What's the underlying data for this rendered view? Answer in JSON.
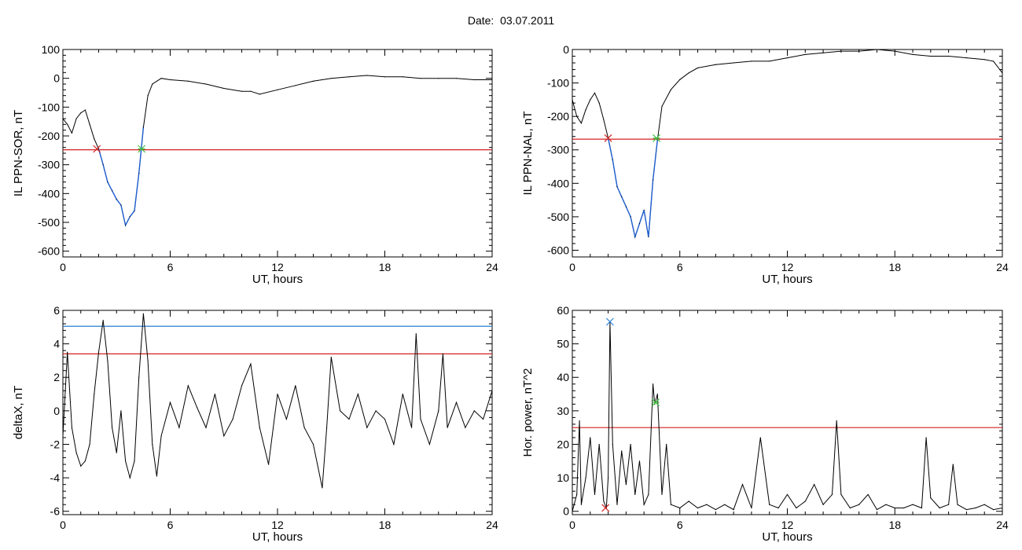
{
  "header": {
    "date_label": "Date:",
    "date_value": "03.07.2011"
  },
  "colors": {
    "trace": "#000000",
    "highlight": "#1f5fcf",
    "threshold_red": "#d42020",
    "threshold_blue": "#2a7fd4",
    "marker_green": "#3fbf3f"
  },
  "chart_data": [
    {
      "type": "line",
      "xlabel": "UT, hours",
      "ylabel": "IL PPN-SOR, nT",
      "xlim": [
        0,
        24
      ],
      "ylim": [
        -620,
        100
      ],
      "xticks": [
        0,
        6,
        12,
        18,
        24
      ],
      "yticks": [
        100,
        0,
        -100,
        -200,
        -300,
        -400,
        -500,
        -600
      ],
      "series": [
        {
          "x": [
            0,
            0.25,
            0.5,
            0.75,
            1,
            1.25,
            1.5,
            1.75,
            2,
            2.25,
            2.5,
            2.75,
            3,
            3.25,
            3.5,
            3.75,
            4,
            4.25,
            4.5,
            4.75,
            5,
            5.5,
            6,
            7,
            8,
            9,
            10,
            10.5,
            11,
            12,
            13,
            14,
            15,
            16,
            17,
            18,
            19,
            20,
            21,
            22,
            23,
            24
          ],
          "y": [
            -140,
            -160,
            -190,
            -140,
            -120,
            -110,
            -160,
            -210,
            -245,
            -300,
            -360,
            -390,
            -420,
            -440,
            -510,
            -480,
            -460,
            -330,
            -170,
            -60,
            -20,
            0,
            -5,
            -10,
            -20,
            -35,
            -45,
            -45,
            -55,
            -40,
            -25,
            -10,
            0,
            5,
            10,
            5,
            5,
            0,
            0,
            0,
            -5,
            -5
          ]
        }
      ],
      "highlight": {
        "x_start": 1.9,
        "x_end": 4.4
      },
      "threshold_red": -248,
      "markers": [
        {
          "x": 1.9,
          "y": -245,
          "color": "red"
        },
        {
          "x": 4.4,
          "y": -245,
          "color": "green"
        }
      ]
    },
    {
      "type": "line",
      "xlabel": "UT, hours",
      "ylabel": "IL PPN-NAL, nT",
      "xlim": [
        0,
        24
      ],
      "ylim": [
        -620,
        0
      ],
      "xticks": [
        0,
        6,
        12,
        18,
        24
      ],
      "yticks": [
        0,
        -100,
        -200,
        -300,
        -400,
        -500,
        -600
      ],
      "series": [
        {
          "x": [
            0,
            0.25,
            0.5,
            0.75,
            1,
            1.25,
            1.5,
            1.75,
            2,
            2.25,
            2.5,
            2.75,
            3,
            3.25,
            3.5,
            3.75,
            4,
            4.25,
            4.5,
            4.75,
            5,
            5.5,
            6,
            6.5,
            7,
            8,
            9,
            10,
            11,
            12,
            13,
            14,
            15,
            16,
            17,
            18,
            19,
            20,
            21,
            22,
            23,
            23.5,
            24
          ],
          "y": [
            -150,
            -200,
            -220,
            -180,
            -150,
            -130,
            -160,
            -210,
            -265,
            -330,
            -410,
            -440,
            -470,
            -500,
            -560,
            -520,
            -480,
            -560,
            -390,
            -270,
            -170,
            -120,
            -90,
            -70,
            -55,
            -45,
            -40,
            -35,
            -35,
            -25,
            -15,
            -10,
            -5,
            -5,
            0,
            -5,
            -15,
            -20,
            -20,
            -25,
            -30,
            -35,
            -70
          ]
        }
      ],
      "highlight": {
        "x_start": 2.0,
        "x_end": 4.7
      },
      "threshold_red": -268,
      "markers": [
        {
          "x": 2.0,
          "y": -265,
          "color": "red"
        },
        {
          "x": 4.7,
          "y": -265,
          "color": "green"
        }
      ]
    },
    {
      "type": "line",
      "xlabel": "UT, hours",
      "ylabel": "deltaX, nT",
      "xlim": [
        0,
        24
      ],
      "ylim": [
        -6.2,
        6
      ],
      "xticks": [
        0,
        6,
        12,
        18,
        24
      ],
      "yticks": [
        6,
        4,
        2,
        0,
        -2,
        -4,
        -6
      ],
      "series": [
        {
          "x": [
            0,
            0.25,
            0.5,
            0.75,
            1,
            1.25,
            1.5,
            1.75,
            2,
            2.25,
            2.5,
            2.75,
            3,
            3.25,
            3.5,
            3.75,
            4,
            4.25,
            4.5,
            4.75,
            5,
            5.25,
            5.5,
            6,
            6.5,
            7,
            7.5,
            8,
            8.5,
            9,
            9.5,
            10,
            10.5,
            11,
            11.5,
            12,
            12.5,
            13,
            13.5,
            14,
            14.5,
            14.75,
            15,
            15.5,
            16,
            16.5,
            17,
            17.5,
            18,
            18.5,
            19,
            19.5,
            19.75,
            20,
            20.5,
            21,
            21.25,
            21.5,
            22,
            22.5,
            23,
            23.5,
            24
          ],
          "y": [
            -1.5,
            3.5,
            -1,
            -2.5,
            -3.3,
            -3,
            -2,
            1,
            3.5,
            5.4,
            3,
            -1,
            -2.5,
            0,
            -3,
            -4,
            -3,
            2,
            5.8,
            3,
            -2,
            -3.9,
            -1.5,
            0.5,
            -1,
            1.5,
            0.2,
            -1,
            1,
            -1.5,
            -0.5,
            1.5,
            2.8,
            -1,
            -3.2,
            1,
            -0.5,
            1.5,
            -1,
            -2,
            -4.6,
            -1,
            3.2,
            0,
            -0.5,
            1,
            -1,
            0,
            -0.5,
            -2,
            1,
            -1,
            4.6,
            -0.5,
            -2,
            0,
            3.4,
            -1,
            0.5,
            -1,
            0,
            -0.5,
            1.2
          ]
        }
      ],
      "threshold_red": 3.4,
      "threshold_blue": 5.05
    },
    {
      "type": "line",
      "xlabel": "UT, hours",
      "ylabel": "Hor. power, nT^2",
      "xlim": [
        0,
        24
      ],
      "ylim": [
        -1,
        60
      ],
      "xticks": [
        0,
        6,
        12,
        18,
        24
      ],
      "yticks": [
        60,
        50,
        40,
        30,
        20,
        10,
        0
      ],
      "series": [
        {
          "x": [
            0,
            0.25,
            0.4,
            0.5,
            0.75,
            1,
            1.25,
            1.5,
            1.75,
            1.9,
            2,
            2.1,
            2.25,
            2.5,
            2.75,
            3,
            3.25,
            3.5,
            3.75,
            4,
            4.25,
            4.5,
            4.6,
            4.75,
            5,
            5.25,
            5.5,
            6,
            6.5,
            7,
            7.5,
            8,
            8.5,
            9,
            9.5,
            10,
            10.5,
            11,
            11.5,
            12,
            12.5,
            13,
            13.5,
            14,
            14.5,
            14.75,
            15,
            15.5,
            16,
            16.5,
            17,
            17.5,
            18,
            18.5,
            19,
            19.5,
            19.75,
            20,
            20.5,
            21,
            21.25,
            21.5,
            22,
            22.5,
            23,
            23.5,
            24
          ],
          "y": [
            0,
            5,
            27,
            2,
            10,
            22,
            5,
            20,
            3,
            1,
            10,
            56.6,
            20,
            2,
            18,
            8,
            20,
            5,
            15,
            2,
            5,
            38,
            32,
            35,
            5,
            20,
            2,
            1,
            3,
            1,
            2,
            0.5,
            2,
            0.5,
            8,
            1,
            22,
            2,
            1,
            5,
            1,
            3,
            8,
            2,
            5,
            27,
            5,
            1,
            2,
            5,
            0.5,
            2,
            1,
            1,
            2,
            1,
            22,
            4,
            1,
            2,
            14,
            2,
            0.5,
            1,
            2,
            0.5,
            1
          ]
        }
      ],
      "threshold_red": 25,
      "markers": [
        {
          "x": 2.1,
          "y": 56.6,
          "color": "blue"
        },
        {
          "x": 4.65,
          "y": 32.5,
          "color": "green"
        },
        {
          "x": 1.85,
          "y": 1.0,
          "color": "red"
        }
      ]
    }
  ]
}
